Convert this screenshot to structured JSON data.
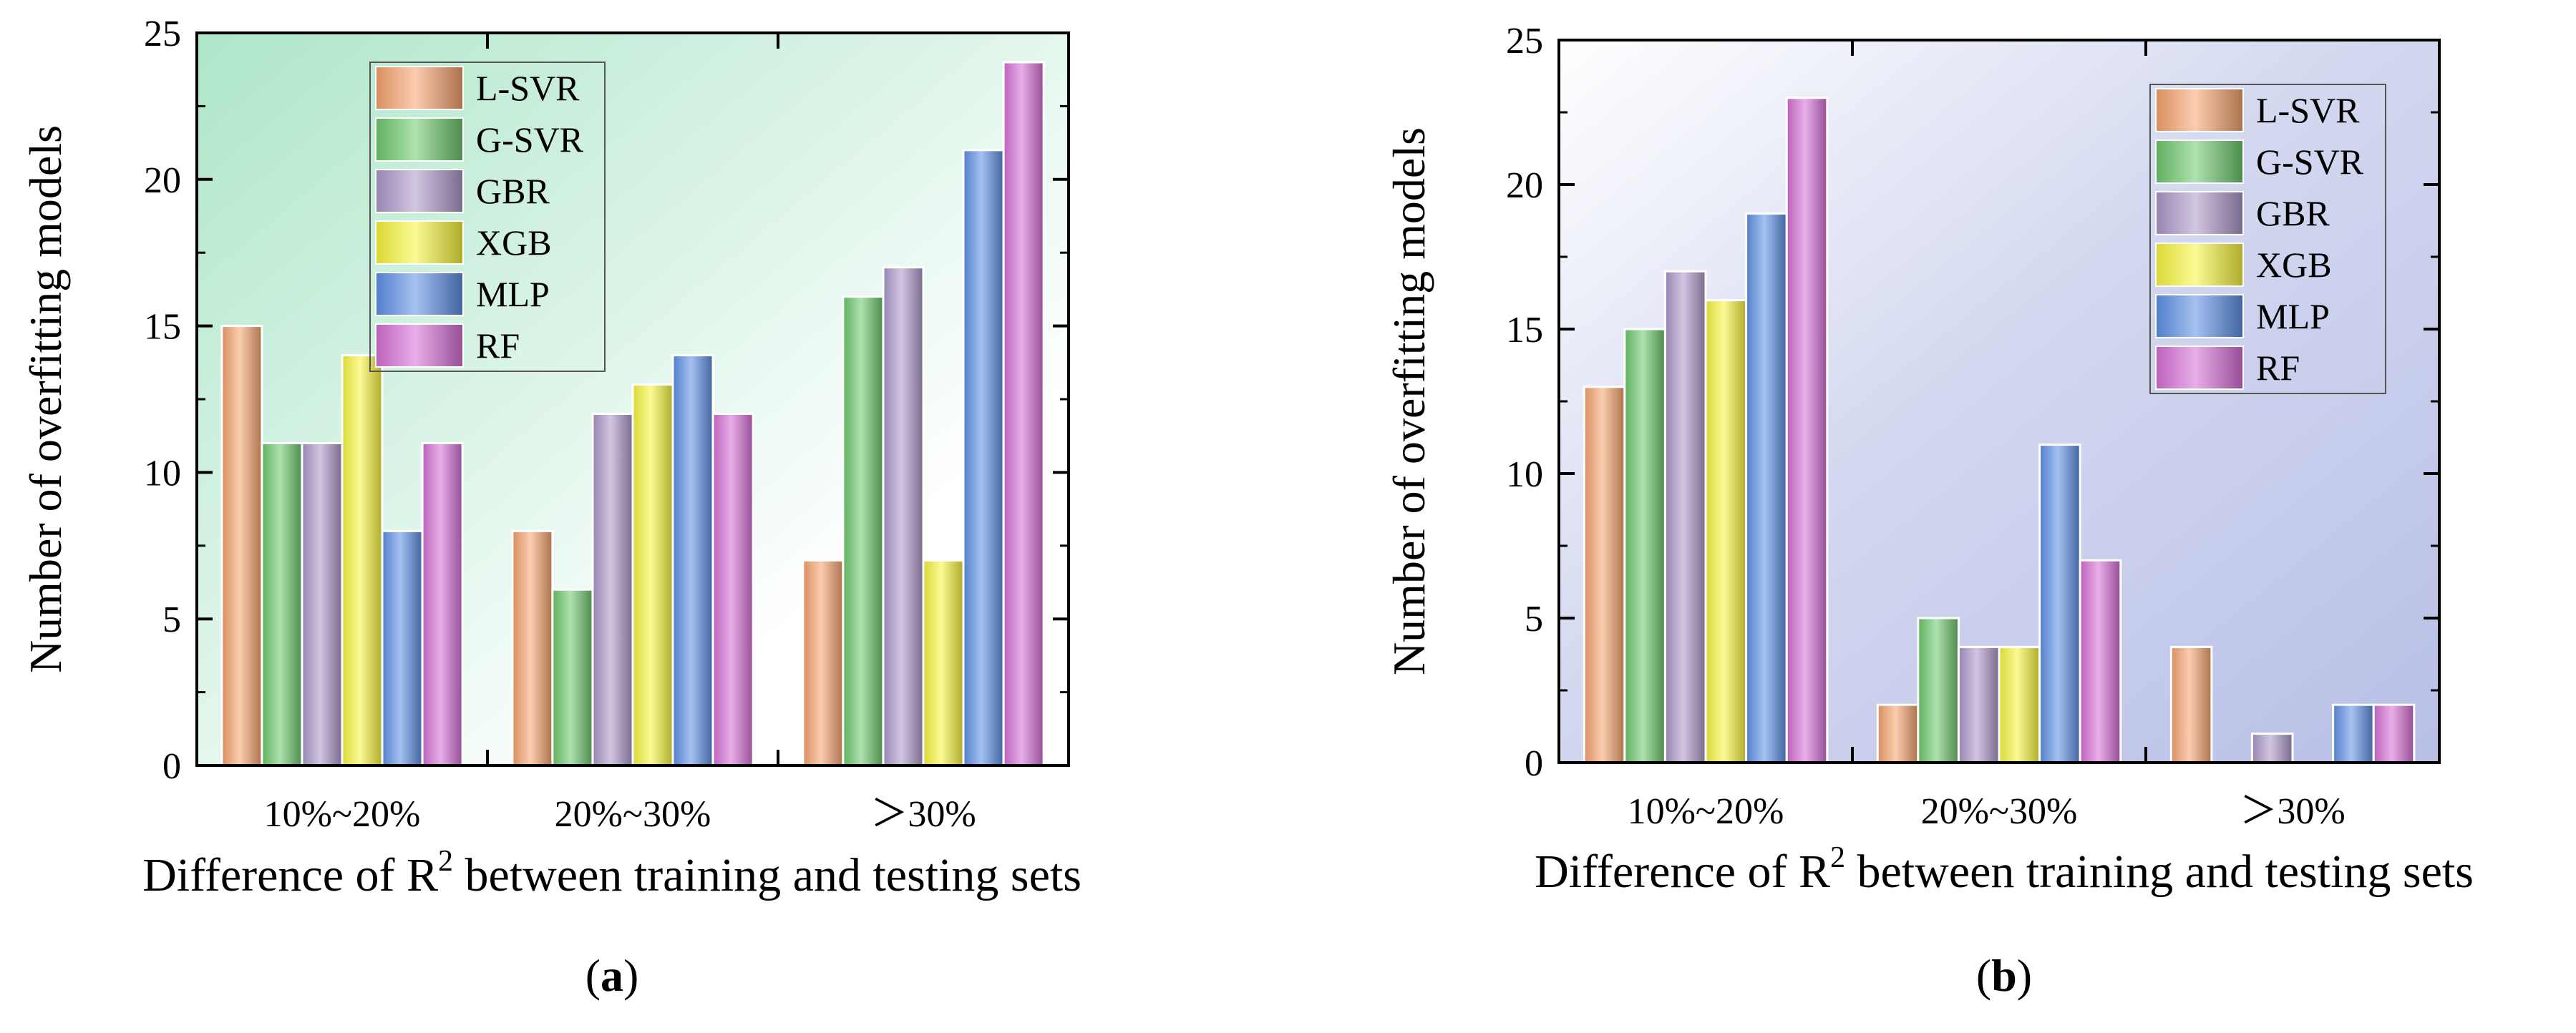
{
  "figure": {
    "panels": [
      {
        "panel_label_open": "(",
        "panel_label_letter": "a",
        "panel_label_close": ")"
      },
      {
        "panel_label_open": "(",
        "panel_label_letter": "b",
        "panel_label_close": ")"
      }
    ]
  },
  "colors": {
    "L-SVR": "#f7a36d",
    "G-SVR": "#6cc86c",
    "GBR": "#ab97c9",
    "XGB": "#f8f53c",
    "MLP": "#5c8fe6",
    "RF": "#d66ed6",
    "bg_a_start": "#aee6c9",
    "bg_a_end": "#ffffff",
    "bg_b_start": "#ffffff",
    "bg_b_end": "#b8bfe6"
  },
  "chart_data": [
    {
      "type": "bar",
      "title": "",
      "xlabel_prefix": "Difference of R",
      "xlabel_sup": "2",
      "xlabel_suffix": " between training and testing sets",
      "ylabel": "Number of overfitting models",
      "categories": [
        "10%~20%",
        "20%~30%",
        "＞30%"
      ],
      "ylim": [
        0,
        25
      ],
      "yticks": [
        "0",
        "5",
        "10",
        "15",
        "20",
        "25"
      ],
      "legend_position": "top-center",
      "series": [
        {
          "name": "L-SVR",
          "values": [
            15,
            8,
            7
          ]
        },
        {
          "name": "G-SVR",
          "values": [
            11,
            6,
            16
          ]
        },
        {
          "name": "GBR",
          "values": [
            11,
            12,
            17
          ]
        },
        {
          "name": "XGB",
          "values": [
            14,
            13,
            7
          ]
        },
        {
          "name": "MLP",
          "values": [
            8,
            14,
            21
          ]
        },
        {
          "name": "RF",
          "values": [
            11,
            12,
            24
          ]
        }
      ]
    },
    {
      "type": "bar",
      "title": "",
      "xlabel_prefix": "Difference of R",
      "xlabel_sup": "2",
      "xlabel_suffix": " between training and testing sets",
      "ylabel": "Number of overfitting models",
      "categories": [
        "10%~20%",
        "20%~30%",
        "＞30%"
      ],
      "ylim": [
        0,
        25
      ],
      "yticks": [
        "0",
        "5",
        "10",
        "15",
        "20",
        "25"
      ],
      "legend_position": "top-right",
      "series": [
        {
          "name": "L-SVR",
          "values": [
            13,
            2,
            4
          ]
        },
        {
          "name": "G-SVR",
          "values": [
            15,
            5,
            0
          ]
        },
        {
          "name": "GBR",
          "values": [
            17,
            4,
            1
          ]
        },
        {
          "name": "XGB",
          "values": [
            16,
            4,
            0
          ]
        },
        {
          "name": "MLP",
          "values": [
            19,
            11,
            2
          ]
        },
        {
          "name": "RF",
          "values": [
            23,
            7,
            2
          ]
        }
      ]
    }
  ]
}
